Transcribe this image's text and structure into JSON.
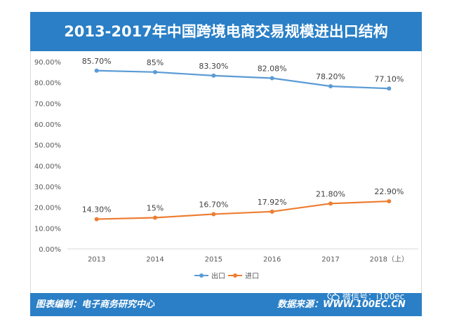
{
  "title": "2013-2017年中国跨境电商交易规模进出口结构",
  "footer": {
    "left": "图表编制：电子商务研究中心",
    "source_label": "数据来源：",
    "source_url": "WWW.100EC.CN",
    "watermark": "微信号：i100ec"
  },
  "colors": {
    "export": "#5b9bd5",
    "import": "#ed7d31",
    "header_bg": "#2a7fc6"
  },
  "chart_data": {
    "type": "line",
    "title": "2013-2017年中国跨境电商交易规模进出口结构",
    "categories": [
      "2013",
      "2014",
      "2015",
      "2016",
      "2017",
      "2018（上）"
    ],
    "series": [
      {
        "name": "出口",
        "values": [
          85.7,
          85,
          83.3,
          82.08,
          78.2,
          77.1
        ],
        "labels": [
          "85.70%",
          "85%",
          "83.30%",
          "82.08%",
          "78.20%",
          "77.10%"
        ]
      },
      {
        "name": "进口",
        "values": [
          14.3,
          15,
          16.7,
          17.92,
          21.8,
          22.9
        ],
        "labels": [
          "14.30%",
          "15%",
          "16.70%",
          "17.92%",
          "21.80%",
          "22.90%"
        ]
      }
    ],
    "ylim": [
      0,
      90
    ],
    "yticks": [
      "0.00%",
      "10.00%",
      "20.00%",
      "30.00%",
      "40.00%",
      "50.00%",
      "60.00%",
      "70.00%",
      "80.00%",
      "90.00%"
    ],
    "xlabel": "",
    "ylabel": "",
    "grid": false,
    "legend": "bottom"
  }
}
